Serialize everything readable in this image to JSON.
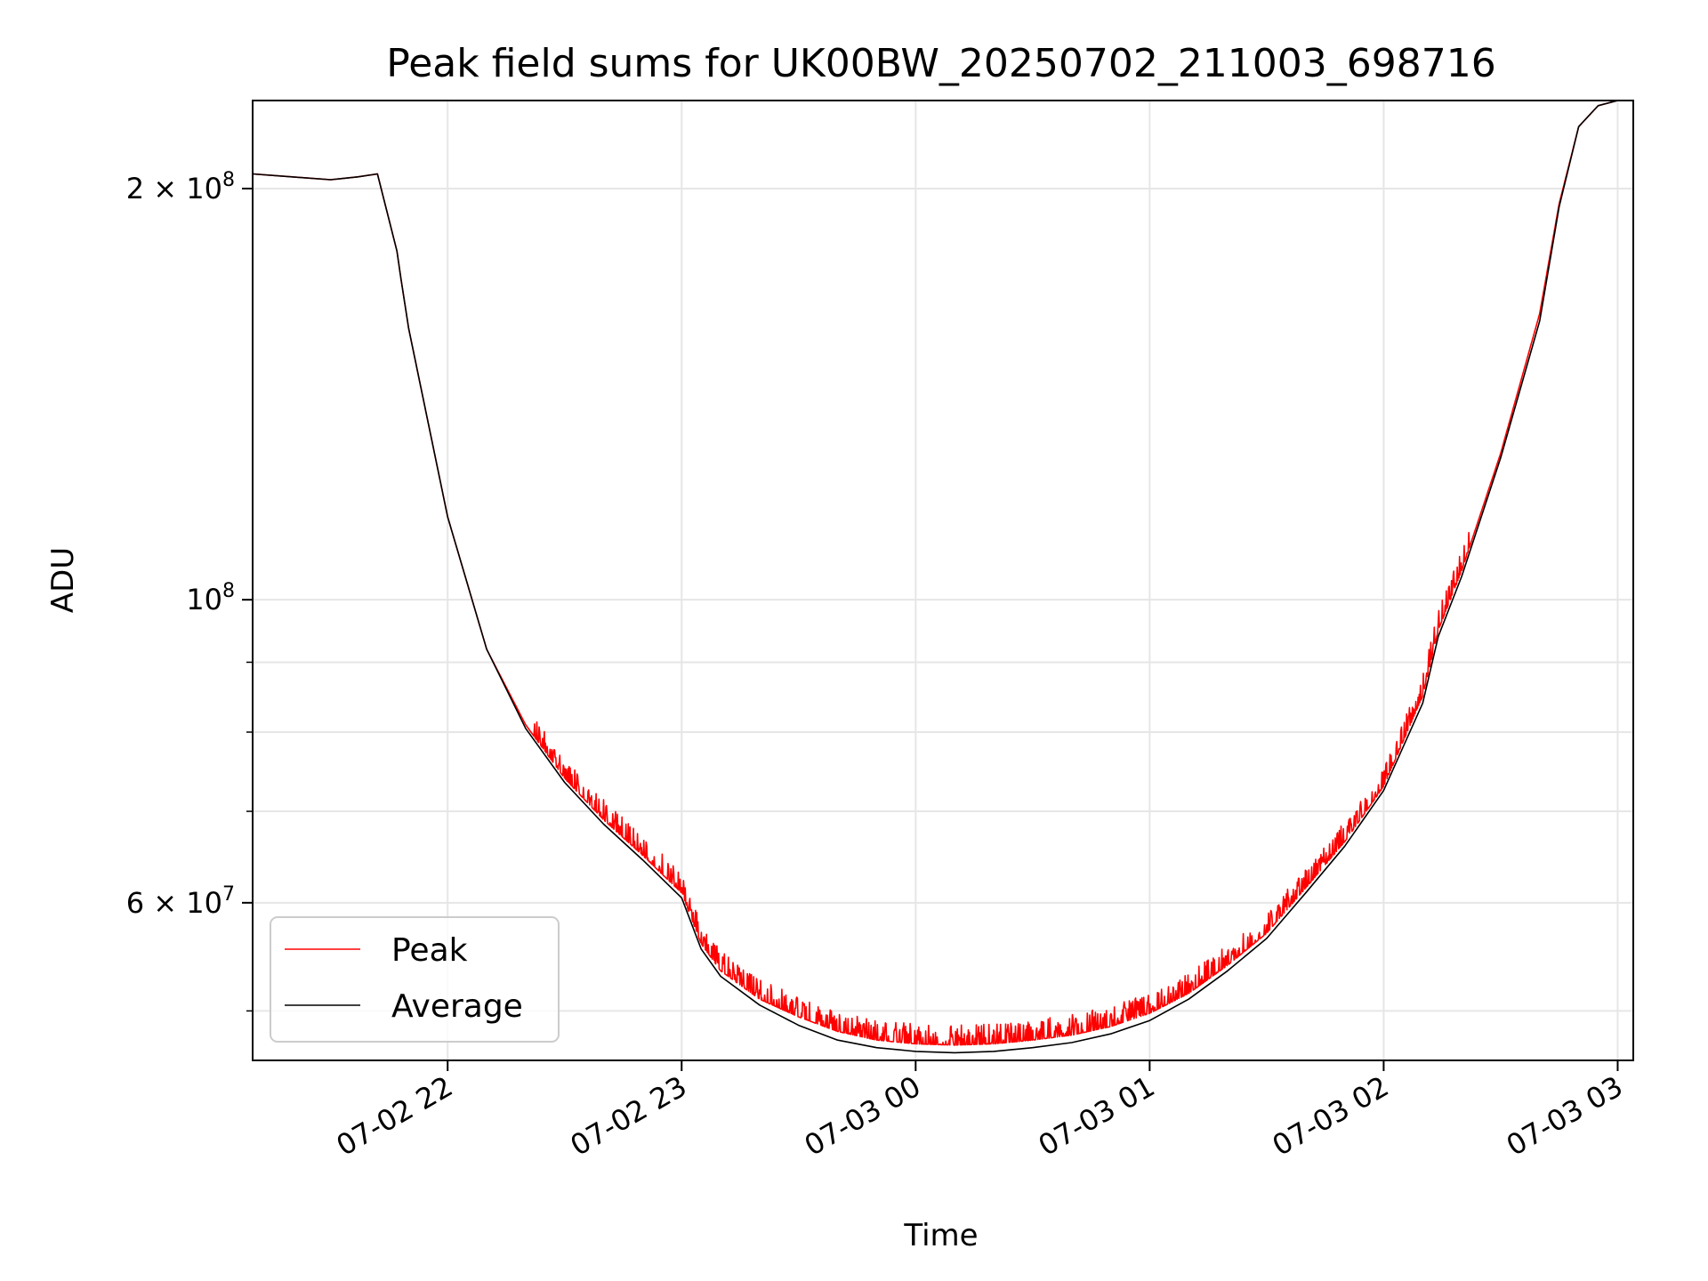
{
  "chart_data": {
    "type": "line",
    "title": "Peak field sums for UK00BW_20250702_211003_698716",
    "xlabel": "Time",
    "ylabel": "ADU",
    "xlim": [
      "2025-07-02T21:10:00",
      "2025-07-03T03:04:00"
    ],
    "ylim": [
      46000000,
      232000000
    ],
    "yscale": "log",
    "grid": true,
    "legend_position": "lower-left",
    "x_ticks": [
      {
        "value": "2025-07-02T22:00:00",
        "label": "07-02 22"
      },
      {
        "value": "2025-07-02T23:00:00",
        "label": "07-02 23"
      },
      {
        "value": "2025-07-03T00:00:00",
        "label": "07-03 00"
      },
      {
        "value": "2025-07-03T01:00:00",
        "label": "07-03 01"
      },
      {
        "value": "2025-07-03T02:00:00",
        "label": "07-03 02"
      },
      {
        "value": "2025-07-03T03:00:00",
        "label": "07-03 03"
      }
    ],
    "y_ticks_major": [
      {
        "value": 60000000,
        "label": "6 × 10",
        "exp": "7"
      },
      {
        "value": 100000000,
        "label": "10",
        "exp": "8"
      },
      {
        "value": 200000000,
        "label": "2 × 10",
        "exp": "8"
      }
    ],
    "y_ticks_minor": [
      50000000,
      70000000,
      80000000,
      90000000
    ],
    "series": [
      {
        "name": "Peak",
        "color": "#ff0000",
        "noisy": true,
        "x": [
          "2025-07-02T21:10:00",
          "2025-07-02T21:20:00",
          "2025-07-02T21:30:00",
          "2025-07-02T21:37:00",
          "2025-07-02T21:42:00",
          "2025-07-02T21:47:00",
          "2025-07-02T21:48:00",
          "2025-07-02T21:50:00",
          "2025-07-02T22:00:00",
          "2025-07-02T22:10:00",
          "2025-07-02T22:20:00",
          "2025-07-02T22:30:00",
          "2025-07-02T22:40:00",
          "2025-07-02T22:50:00",
          "2025-07-02T23:00:00",
          "2025-07-02T23:05:00",
          "2025-07-02T23:10:00",
          "2025-07-02T23:20:00",
          "2025-07-02T23:30:00",
          "2025-07-02T23:40:00",
          "2025-07-02T23:50:00",
          "2025-07-03T00:00:00",
          "2025-07-03T00:10:00",
          "2025-07-03T00:20:00",
          "2025-07-03T00:30:00",
          "2025-07-03T00:40:00",
          "2025-07-03T00:50:00",
          "2025-07-03T01:00:00",
          "2025-07-03T01:10:00",
          "2025-07-03T01:20:00",
          "2025-07-03T01:30:00",
          "2025-07-03T01:40:00",
          "2025-07-03T01:50:00",
          "2025-07-03T02:00:00",
          "2025-07-03T02:10:00",
          "2025-07-03T02:14:00",
          "2025-07-03T02:20:00",
          "2025-07-03T02:30:00",
          "2025-07-03T02:40:00",
          "2025-07-03T02:45:00",
          "2025-07-03T02:50:00",
          "2025-07-03T02:55:00",
          "2025-07-03T03:00:00",
          "2025-07-03T03:04:00"
        ],
        "y": [
          205000000,
          204000000,
          203000000,
          204000000,
          205000000,
          180000000,
          172000000,
          158000000,
          115000000,
          92000000,
          81000000,
          74000000,
          69000000,
          65000000,
          61000000,
          56000000,
          53500000,
          51000000,
          49500000,
          48300000,
          47600000,
          47300000,
          47200000,
          47300000,
          47600000,
          48000000,
          48700000,
          49800000,
          51500000,
          54000000,
          57000000,
          61500000,
          66500000,
          73000000,
          85000000,
          95000000,
          105000000,
          128000000,
          162000000,
          195000000,
          222000000,
          230000000,
          232000000,
          232000000
        ]
      },
      {
        "name": "Average",
        "color": "#000000",
        "noisy": false,
        "x": [
          "2025-07-02T21:10:00",
          "2025-07-02T21:20:00",
          "2025-07-02T21:30:00",
          "2025-07-02T21:37:00",
          "2025-07-02T21:42:00",
          "2025-07-02T21:47:00",
          "2025-07-02T21:48:00",
          "2025-07-02T21:50:00",
          "2025-07-02T22:00:00",
          "2025-07-02T22:10:00",
          "2025-07-02T22:20:00",
          "2025-07-02T22:30:00",
          "2025-07-02T22:40:00",
          "2025-07-02T22:50:00",
          "2025-07-02T23:00:00",
          "2025-07-02T23:05:00",
          "2025-07-02T23:10:00",
          "2025-07-02T23:20:00",
          "2025-07-02T23:30:00",
          "2025-07-02T23:40:00",
          "2025-07-02T23:50:00",
          "2025-07-03T00:00:00",
          "2025-07-03T00:10:00",
          "2025-07-03T00:20:00",
          "2025-07-03T00:30:00",
          "2025-07-03T00:40:00",
          "2025-07-03T00:50:00",
          "2025-07-03T01:00:00",
          "2025-07-03T01:10:00",
          "2025-07-03T01:20:00",
          "2025-07-03T01:30:00",
          "2025-07-03T01:40:00",
          "2025-07-03T01:50:00",
          "2025-07-03T02:00:00",
          "2025-07-03T02:10:00",
          "2025-07-03T02:14:00",
          "2025-07-03T02:20:00",
          "2025-07-03T02:30:00",
          "2025-07-03T02:40:00",
          "2025-07-03T02:45:00",
          "2025-07-03T02:50:00",
          "2025-07-03T02:55:00",
          "2025-07-03T03:00:00",
          "2025-07-03T03:04:00"
        ],
        "y": [
          205000000,
          204000000,
          203000000,
          204000000,
          205000000,
          180000000,
          172000000,
          158000000,
          115000000,
          92000000,
          80500000,
          73500000,
          68500000,
          64500000,
          60500000,
          55500000,
          53000000,
          50500000,
          48800000,
          47600000,
          47000000,
          46700000,
          46600000,
          46700000,
          47000000,
          47400000,
          48100000,
          49200000,
          51000000,
          53500000,
          56500000,
          61000000,
          66000000,
          72500000,
          84000000,
          94000000,
          104000000,
          127000000,
          160000000,
          194000000,
          222000000,
          230000000,
          232000000,
          232000000
        ]
      }
    ]
  }
}
